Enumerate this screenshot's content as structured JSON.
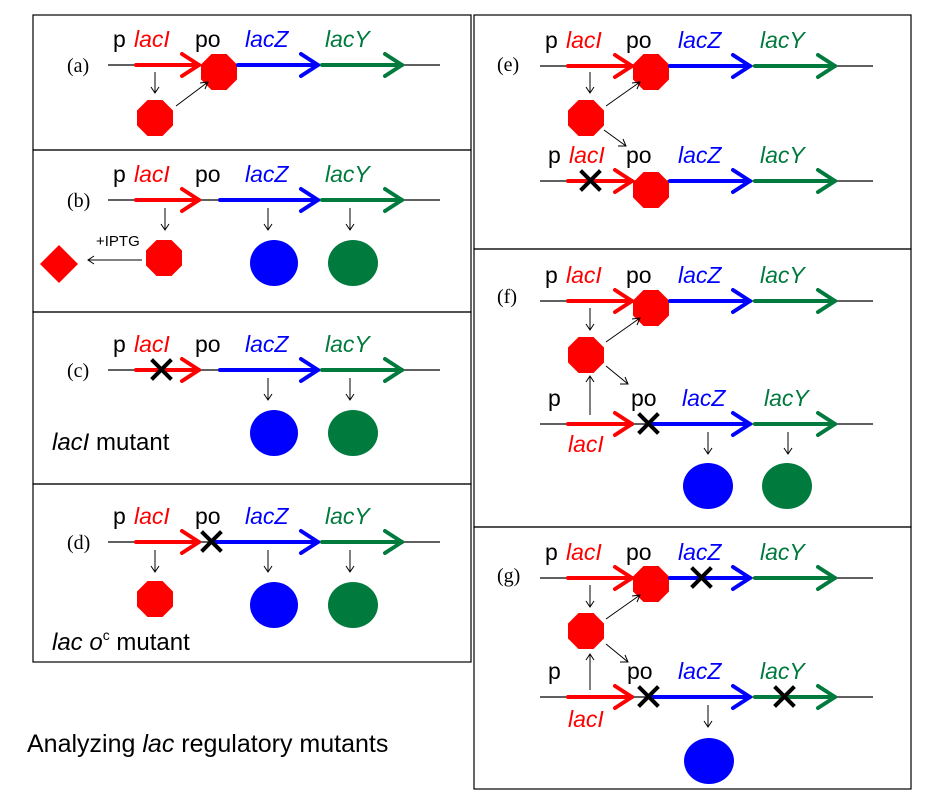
{
  "colors": {
    "red": "#ff0000",
    "blue": "#0000ff",
    "green": "#007a3d",
    "black": "#000000"
  },
  "labels": {
    "p": "p",
    "po": "po",
    "lacI": "lacI",
    "lacZ": "lacZ",
    "lacY": "lacY",
    "iptg": "+IPTG"
  },
  "panels": {
    "a": "(a)",
    "b": "(b)",
    "c": "(c)",
    "d": "(d)",
    "e": "(e)",
    "f": "(f)",
    "g": "(g)"
  },
  "notes": {
    "c_mutant_gene": "lacI",
    "c_mutant_word": " mutant",
    "d_lac": "lac o",
    "d_sup": "c",
    "d_mutant_word": " mutant"
  },
  "caption": {
    "pre": "Analyzing ",
    "lac": "lac",
    "post": " regulatory mutants"
  }
}
